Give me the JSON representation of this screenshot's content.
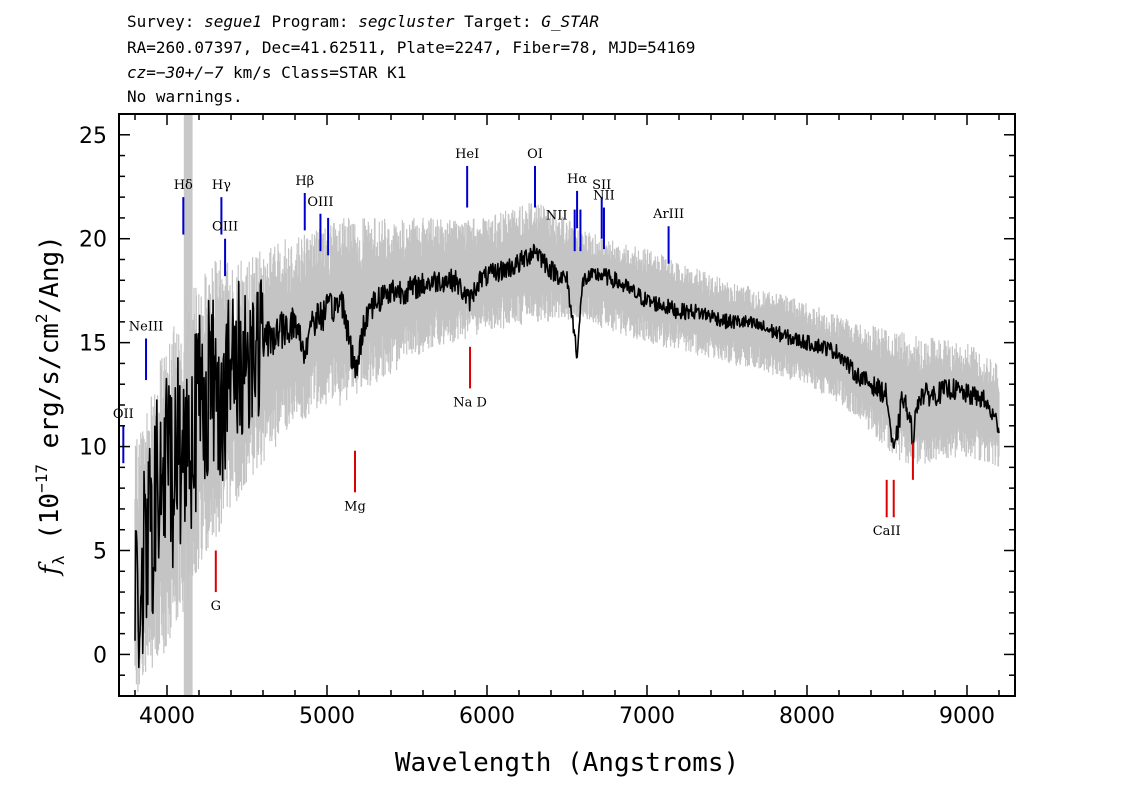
{
  "header": {
    "line1": {
      "survey_label": "Survey: ",
      "survey": "segue1",
      "program_label": " Program: ",
      "program": "segcluster",
      "target_label": " Target: ",
      "target": "G_STAR"
    },
    "line2": "RA=260.07397, Dec=41.62511, Plate=2247, Fiber=78, MJD=54169",
    "line3": {
      "cz": "cz=−30+/−7",
      "rest": " km/s Class=STAR K1"
    },
    "line4": "No warnings."
  },
  "chart_data": {
    "type": "line",
    "title": "",
    "xlabel": "Wavelength (Angstroms)",
    "ylabel": "f_λ (10^-17 erg/s/cm^2/Ang)",
    "xlim": [
      3700,
      9300
    ],
    "ylim": [
      -2,
      26
    ],
    "xticks": [
      4000,
      5000,
      6000,
      7000,
      8000,
      9000
    ],
    "yticks": [
      0,
      5,
      10,
      15,
      20,
      25
    ],
    "grid": false,
    "legend": "none",
    "colors": {
      "flux": "#000000",
      "error_band": "#c4c4c4",
      "emission_line": "#0000cc",
      "absorption_line": "#dd0000",
      "masked_region": "#c8c8c8"
    },
    "masked_region": [
      4105,
      4160
    ],
    "series": [
      {
        "role": "flux",
        "points": [
          [
            3800,
            2.0
          ],
          [
            3850,
            4.0
          ],
          [
            3900,
            6.0
          ],
          [
            3950,
            8.0
          ],
          [
            4000,
            9.0
          ],
          [
            4050,
            9.5
          ],
          [
            4100,
            10.0
          ],
          [
            4150,
            11.0
          ],
          [
            4200,
            12.0
          ],
          [
            4250,
            13.0
          ],
          [
            4300,
            13.0
          ],
          [
            4350,
            12.5
          ],
          [
            4400,
            13.5
          ],
          [
            4450,
            14.0
          ],
          [
            4500,
            14.5
          ],
          [
            4600,
            15.0
          ],
          [
            4700,
            15.5
          ],
          [
            4800,
            16.0
          ],
          [
            4860,
            14.5
          ],
          [
            4900,
            16.0
          ],
          [
            5000,
            16.5
          ],
          [
            5100,
            17.0
          ],
          [
            5175,
            13.5
          ],
          [
            5250,
            16.5
          ],
          [
            5300,
            17.0
          ],
          [
            5400,
            17.5
          ],
          [
            5500,
            17.5
          ],
          [
            5600,
            17.8
          ],
          [
            5700,
            18.0
          ],
          [
            5800,
            18.0
          ],
          [
            5890,
            17.0
          ],
          [
            5950,
            18.0
          ],
          [
            6000,
            18.2
          ],
          [
            6100,
            18.5
          ],
          [
            6200,
            18.8
          ],
          [
            6300,
            19.5
          ],
          [
            6400,
            18.5
          ],
          [
            6500,
            18.0
          ],
          [
            6563,
            14.5
          ],
          [
            6600,
            18.0
          ],
          [
            6700,
            18.3
          ],
          [
            6800,
            18.0
          ],
          [
            6900,
            17.5
          ],
          [
            7000,
            17.0
          ],
          [
            7100,
            16.8
          ],
          [
            7200,
            16.5
          ],
          [
            7300,
            16.5
          ],
          [
            7400,
            16.3
          ],
          [
            7500,
            16.0
          ],
          [
            7600,
            16.0
          ],
          [
            7700,
            15.8
          ],
          [
            7800,
            15.5
          ],
          [
            7900,
            15.2
          ],
          [
            8000,
            15.0
          ],
          [
            8100,
            14.8
          ],
          [
            8200,
            14.5
          ],
          [
            8300,
            13.5
          ],
          [
            8400,
            13.0
          ],
          [
            8498,
            12.5
          ],
          [
            8542,
            9.5
          ],
          [
            8600,
            12.5
          ],
          [
            8662,
            10.5
          ],
          [
            8700,
            12.5
          ],
          [
            8800,
            12.5
          ],
          [
            8900,
            12.8
          ],
          [
            9000,
            12.5
          ],
          [
            9100,
            12.3
          ],
          [
            9200,
            11.0
          ]
        ]
      },
      {
        "role": "error_band",
        "lower": [
          [
            3800,
            -2.0
          ],
          [
            3900,
            -1.0
          ],
          [
            4000,
            0.0
          ],
          [
            4100,
            2.0
          ],
          [
            4200,
            4.0
          ],
          [
            4300,
            5.5
          ],
          [
            4400,
            7.0
          ],
          [
            4500,
            8.0
          ],
          [
            4700,
            10.0
          ],
          [
            4900,
            11.5
          ],
          [
            5100,
            12.0
          ],
          [
            5300,
            13.0
          ],
          [
            5600,
            14.5
          ],
          [
            6000,
            15.5
          ],
          [
            6300,
            16.0
          ],
          [
            6600,
            16.0
          ],
          [
            7000,
            15.0
          ],
          [
            7500,
            14.0
          ],
          [
            8000,
            13.0
          ],
          [
            8300,
            11.5
          ],
          [
            8600,
            9.0
          ],
          [
            9000,
            9.5
          ],
          [
            9200,
            9.0
          ]
        ],
        "upper": [
          [
            3800,
            10.0
          ],
          [
            3900,
            13.0
          ],
          [
            4000,
            15.0
          ],
          [
            4100,
            17.0
          ],
          [
            4200,
            18.0
          ],
          [
            4300,
            19.0
          ],
          [
            4400,
            19.0
          ],
          [
            4500,
            19.0
          ],
          [
            4700,
            20.0
          ],
          [
            4900,
            20.5
          ],
          [
            5100,
            21.0
          ],
          [
            5300,
            21.0
          ],
          [
            5600,
            21.0
          ],
          [
            6000,
            21.0
          ],
          [
            6300,
            22.0
          ],
          [
            6600,
            20.5
          ],
          [
            7000,
            19.5
          ],
          [
            7500,
            18.0
          ],
          [
            8000,
            17.0
          ],
          [
            8300,
            16.0
          ],
          [
            8600,
            15.5
          ],
          [
            9000,
            15.0
          ],
          [
            9200,
            14.0
          ]
        ]
      }
    ],
    "line_markers": [
      {
        "label": "OII",
        "wavelength": 3727,
        "y_top": 11.0,
        "y_bottom": 9.2,
        "color": "blue",
        "label_pos": "above"
      },
      {
        "label": "NeIII",
        "wavelength": 3869,
        "y_top": 15.2,
        "y_bottom": 13.2,
        "color": "blue",
        "label_pos": "above"
      },
      {
        "label": "Hδ",
        "wavelength": 4102,
        "y_top": 22.0,
        "y_bottom": 20.2,
        "color": "blue",
        "label_pos": "above"
      },
      {
        "label": "Hγ",
        "wavelength": 4340,
        "y_top": 22.0,
        "y_bottom": 20.2,
        "color": "blue",
        "label_pos": "above"
      },
      {
        "label": "OIII",
        "wavelength": 4363,
        "y_top": 20.0,
        "y_bottom": 18.2,
        "color": "blue",
        "label_pos": "above"
      },
      {
        "label": "Hβ",
        "wavelength": 4861,
        "y_top": 22.2,
        "y_bottom": 20.4,
        "color": "blue",
        "label_pos": "above"
      },
      {
        "label": "OIII",
        "wavelength": 4959,
        "y_top": 21.2,
        "y_bottom": 19.4,
        "color": "blue",
        "label_pos": "above"
      },
      {
        "label": "",
        "wavelength": 5007,
        "y_top": 21.0,
        "y_bottom": 19.2,
        "color": "blue",
        "label_pos": "none"
      },
      {
        "label": "HeI",
        "wavelength": 5876,
        "y_top": 23.5,
        "y_bottom": 21.5,
        "color": "blue",
        "label_pos": "above"
      },
      {
        "label": "OI",
        "wavelength": 6300,
        "y_top": 23.5,
        "y_bottom": 21.5,
        "color": "blue",
        "label_pos": "above"
      },
      {
        "label": "NII",
        "wavelength": 6548,
        "y_top": 21.4,
        "y_bottom": 19.4,
        "color": "blue",
        "label_pos": "left"
      },
      {
        "label": "Hα",
        "wavelength": 6563,
        "y_top": 22.3,
        "y_bottom": 20.5,
        "color": "blue",
        "label_pos": "above"
      },
      {
        "label": "",
        "wavelength": 6584,
        "y_top": 21.4,
        "y_bottom": 19.4,
        "color": "blue",
        "label_pos": "none"
      },
      {
        "label": "SII",
        "wavelength": 6717,
        "y_top": 22.0,
        "y_bottom": 20.0,
        "color": "blue",
        "label_pos": "above"
      },
      {
        "label": "NII",
        "wavelength": 6731,
        "y_top": 21.5,
        "y_bottom": 19.5,
        "color": "blue",
        "label_pos": "above"
      },
      {
        "label": "ArIII",
        "wavelength": 7135,
        "y_top": 20.6,
        "y_bottom": 18.8,
        "color": "blue",
        "label_pos": "above"
      },
      {
        "label": "G",
        "wavelength": 4305,
        "y_top": 5.0,
        "y_bottom": 3.0,
        "color": "red",
        "label_pos": "below"
      },
      {
        "label": "Mg",
        "wavelength": 5175,
        "y_top": 9.8,
        "y_bottom": 7.8,
        "color": "red",
        "label_pos": "below"
      },
      {
        "label": "Na D",
        "wavelength": 5894,
        "y_top": 14.8,
        "y_bottom": 12.8,
        "color": "red",
        "label_pos": "below"
      },
      {
        "label": "CaII",
        "wavelength": 8498,
        "y_top": 8.4,
        "y_bottom": 6.6,
        "color": "red",
        "label_pos": "below"
      },
      {
        "label": "",
        "wavelength": 8542,
        "y_top": 8.4,
        "y_bottom": 6.6,
        "color": "red",
        "label_pos": "none"
      },
      {
        "label": "",
        "wavelength": 8662,
        "y_top": 10.2,
        "y_bottom": 8.4,
        "color": "red",
        "label_pos": "none"
      }
    ]
  }
}
